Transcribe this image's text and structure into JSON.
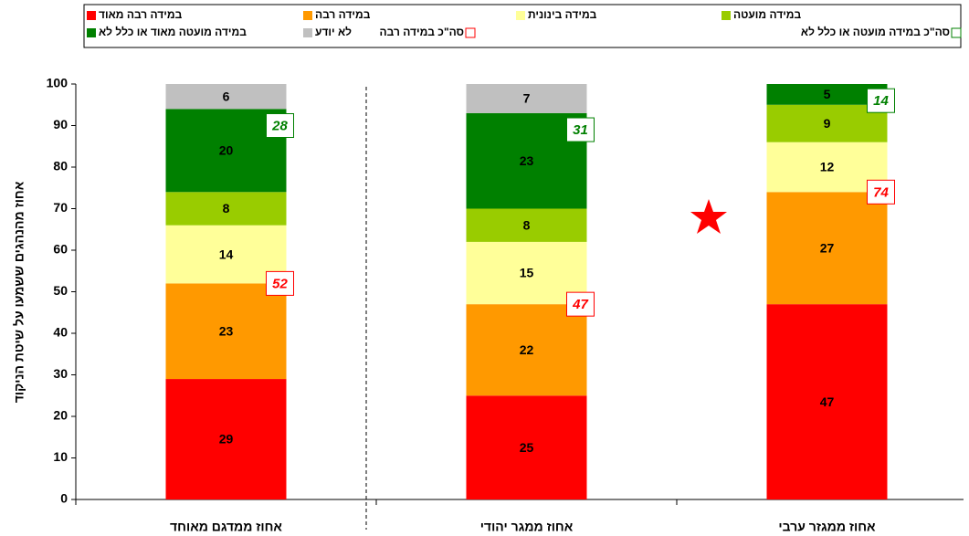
{
  "chart_data": {
    "type": "stacked_bar",
    "ylabel": "אחוז מהנהגים ששמעו על שיטת הניקוד",
    "categories": [
      "אחוז ממדגם מאוחד",
      "אחוז ממגר יהודי",
      "אחוז ממגזר ערבי"
    ],
    "series": [
      {
        "name": "במידה רבה מאוד",
        "color": "#ff0000",
        "values": [
          29,
          25,
          47
        ]
      },
      {
        "name": "במידה רבה",
        "color": "#ff9900",
        "values": [
          23,
          22,
          27
        ]
      },
      {
        "name": "במידה בינונית",
        "color": "#ffff99",
        "values": [
          14,
          15,
          12
        ]
      },
      {
        "name": "במידה מועטה",
        "color": "#99cc00",
        "values": [
          8,
          8,
          9
        ]
      },
      {
        "name": "במידה מועטה מאוד או כלל לא",
        "color": "#008000",
        "values": [
          20,
          23,
          5
        ]
      },
      {
        "name": "לא יודע",
        "color": "#c0c0c0",
        "values": [
          6,
          7,
          null
        ]
      }
    ],
    "totals": [
      {
        "name": "סה\"כ במידה רבה",
        "color": "#ff0000",
        "values": [
          52,
          47,
          74
        ]
      },
      {
        "name": "סה\"כ במידה מועטה או כלל לא",
        "color": "#008000",
        "values": [
          28,
          31,
          14
        ]
      }
    ],
    "ylim": [
      0,
      100
    ],
    "yticks": [
      0,
      10,
      20,
      30,
      40,
      50,
      60,
      70,
      80,
      90,
      100
    ],
    "legend": "top"
  }
}
